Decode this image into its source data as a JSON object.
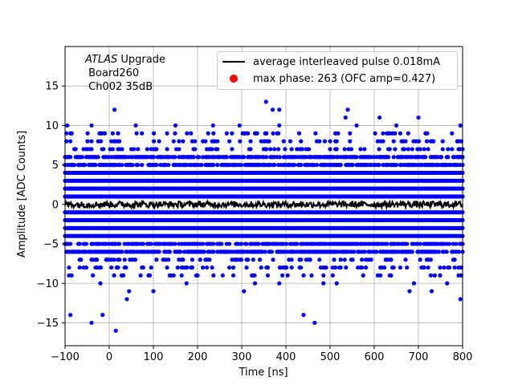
{
  "chart_data": {
    "type": "scatter",
    "xlabel": "Time [ns]",
    "ylabel": "Amplitude [ADC Counts]",
    "xlim": [
      -100,
      800
    ],
    "ylim": [
      -17.9,
      20
    ],
    "xticks": [
      -100,
      0,
      100,
      200,
      300,
      400,
      500,
      600,
      700,
      800
    ],
    "yticks": [
      -15,
      -10,
      -5,
      0,
      5,
      10,
      15
    ],
    "grid": true,
    "legend_position": "top-right",
    "annotation": {
      "line1_italic": "ATLAS",
      "line1_rest": " Upgrade",
      "line2": " Board260",
      "line3": " Ch002 35dB"
    },
    "series": [
      {
        "name": "average interleaved pulse 0.018mA",
        "kind": "line",
        "color": "#000000",
        "x_range": [
          -100,
          800
        ],
        "step_ns": 1.5,
        "approx_value": 0,
        "noise_amplitude": 0.4
      },
      {
        "name": "max phase: 263 (OFC amp=0.427)",
        "kind": "marker",
        "color": "#ff0000",
        "points": []
      },
      {
        "kind": "scatter",
        "color": "#0000ff",
        "x_range": [
          -100,
          800
        ],
        "step_ns": 3,
        "dense_levels": [
          -4,
          -3,
          -2,
          -1,
          1,
          2,
          3,
          4
        ],
        "mid_levels": [
          -6,
          -5,
          5,
          6
        ],
        "sparse_levels": [
          -8,
          -7,
          7,
          8
        ],
        "outliers": [
          {
            "x": 12,
            "y": 12
          },
          {
            "x": 370,
            "y": 12
          },
          {
            "x": 355,
            "y": 13
          },
          {
            "x": 540,
            "y": 12
          },
          {
            "x": 385,
            "y": 12
          },
          {
            "x": 535,
            "y": 11
          },
          {
            "x": 612,
            "y": 11
          },
          {
            "x": 700,
            "y": 11
          },
          {
            "x": -95,
            "y": 10
          },
          {
            "x": -40,
            "y": 10
          },
          {
            "x": 60,
            "y": 10
          },
          {
            "x": 150,
            "y": 10
          },
          {
            "x": 235,
            "y": 10
          },
          {
            "x": 295,
            "y": 10
          },
          {
            "x": 385,
            "y": 10
          },
          {
            "x": 560,
            "y": 10
          },
          {
            "x": 650,
            "y": 10
          },
          {
            "x": 795,
            "y": 10
          },
          {
            "x": -10,
            "y": 9
          },
          {
            "x": 330,
            "y": 9
          },
          {
            "x": 430,
            "y": 9
          },
          {
            "x": 720,
            "y": 9
          },
          {
            "x": -88,
            "y": -14
          },
          {
            "x": -15,
            "y": -14
          },
          {
            "x": -40,
            "y": -15
          },
          {
            "x": 15,
            "y": -16
          },
          {
            "x": 440,
            "y": -14
          },
          {
            "x": 465,
            "y": -15
          },
          {
            "x": 40,
            "y": -12
          },
          {
            "x": 795,
            "y": -12
          },
          {
            "x": 45,
            "y": -11
          },
          {
            "x": 100,
            "y": -11
          },
          {
            "x": -20,
            "y": -10
          },
          {
            "x": 175,
            "y": -10
          },
          {
            "x": 330,
            "y": -10
          },
          {
            "x": 385,
            "y": -10
          },
          {
            "x": 515,
            "y": -10
          },
          {
            "x": 690,
            "y": -10
          },
          {
            "x": 765,
            "y": -10
          },
          {
            "x": 305,
            "y": -11
          },
          {
            "x": 485,
            "y": -10
          },
          {
            "x": 440,
            "y": -9
          },
          {
            "x": 680,
            "y": -11
          },
          {
            "x": 730,
            "y": -11
          },
          {
            "x": 28,
            "y": -9
          },
          {
            "x": 200,
            "y": -9
          }
        ]
      }
    ]
  }
}
